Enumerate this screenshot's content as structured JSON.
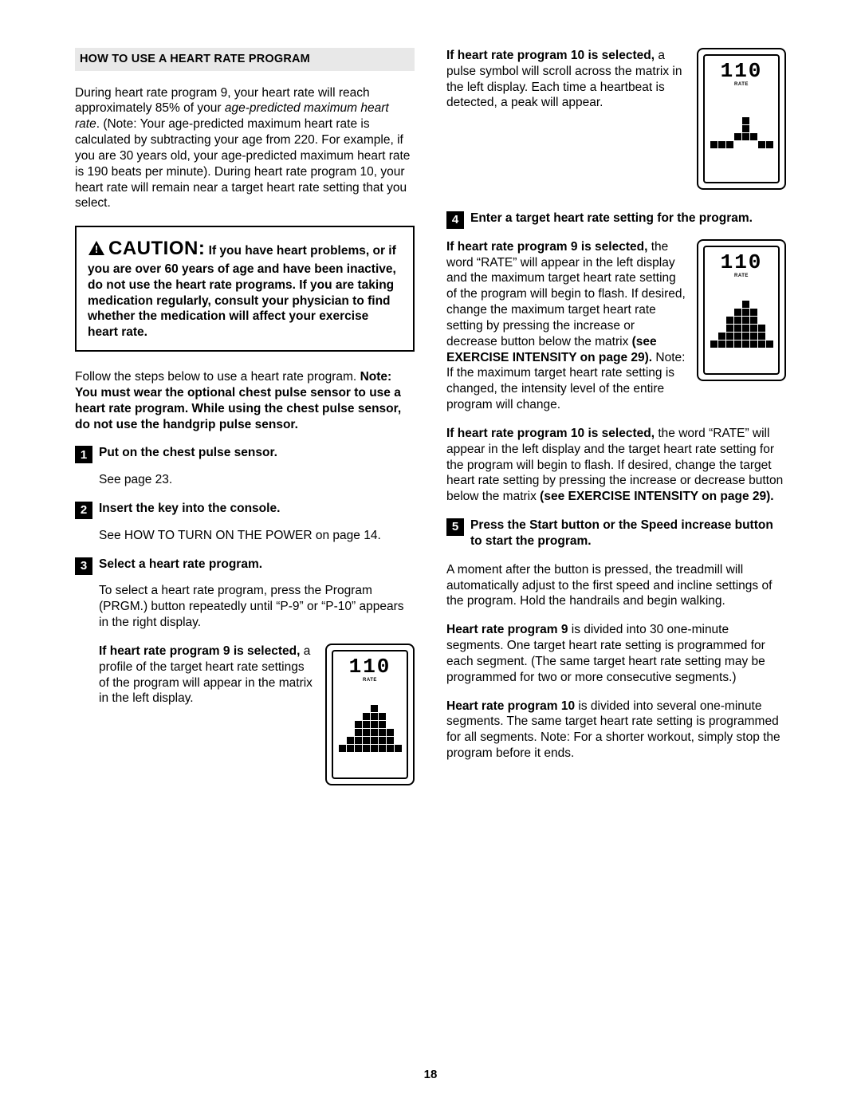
{
  "header": "HOW TO USE A HEART RATE PROGRAM",
  "intro_before_ital": "During heart rate program 9, your heart rate will reach approximately 85% of your ",
  "intro_ital": "age-predicted maximum heart rate",
  "intro_after_ital": ". (Note: Your age-predicted maximum heart rate is calculated by subtracting your age from 220. For example, if you are 30 years old, your age-pre­dicted maximum heart rate is 190 beats per minute). During heart rate program 10, your heart rate will re­main near a target heart rate setting that you select.",
  "caution_title": "CAUTION:",
  "caution_body": " If you have heart prob­lems, or if you are over 60 years of age and have been inactive, do not use the heart rate programs. If you are taking medication regu­larly, consult your physician to find whether the medication will affect your exercise heart rate.",
  "follow": "Follow the steps below to use a heart rate program.",
  "follow_bold": "Note: You must wear the optional chest pulse sen­sor to use a heart rate program. While using the chest pulse sensor, do not use the handgrip pulse sensor.",
  "steps": {
    "1": {
      "num": "1",
      "title": "Put on the chest pulse sensor.",
      "text": "See page 23."
    },
    "2": {
      "num": "2",
      "title": "Insert the key into the console.",
      "text": "See HOW TO TURN ON THE POWER on page 14."
    },
    "3": {
      "num": "3",
      "title": "Select a heart rate program.",
      "text": "To select a heart rate program, press the Program (PRGM.) button repeatedly until “P-9” or “P-10” appears in the right display.",
      "p9_bold": "If heart rate program 9 is selected,",
      "p9_rest": " a profile of the target heart rate settings of the program will appear in the matrix in the left display.",
      "p10_bold": "If heart rate program 10 is selected,",
      "p10_rest": " a pulse symbol will scroll across the matrix in the left display. Each time a heartbeat is detected, a peak will appear."
    },
    "4": {
      "num": "4",
      "title": "Enter a target heart rate setting for the program.",
      "p9_bold": "If heart rate program 9 is selected,",
      "p9_rest": " the word “RATE” will appear in the left display and the maximum target heart rate setting of the pro­gram will begin to flash. If desired, change the maxi­mum target heart rate setting by pressing the increase or decrease button below the matrix ",
      "p9_bold2": "(see EXERCISE INTENSITY on page 29).",
      "p9_rest2": " Note: If the maximum target heart rate setting is changed, the intensity level of the entire program will change.",
      "p10_bold": "If heart rate program 10 is selected,",
      "p10_rest": " the word “RATE” will appear in the left display and the tar­get heart rate setting for the program will begin to flash. If desired, change the target heart rate set­ting by pressing the increase or decrease button below the matrix ",
      "p10_bold2": "(see EXERCISE INTENSITY on page 29)."
    },
    "5": {
      "num": "5",
      "title": "Press the Start button or the Speed increase button to start the program.",
      "text1": "A moment after the button is pressed, the tread­mill will automatically adjust to the first speed and incline settings of the program. Hold the handrails and begin walking.",
      "hr9_bold": "Heart rate program 9",
      "hr9_rest": " is divided into 30 one-minute segments. One target heart rate setting is programmed for each segment. (The same target heart rate setting may be programmed for two or more consecutive segments.)",
      "hr10_bold": "Heart rate program 10",
      "hr10_rest": " is divided into several one-minute segments. The same target heart rate setting is programmed for all segments. Note: For a shorter workout, simply stop the program before it ends."
    }
  },
  "lcd": {
    "value": "110",
    "rate": "RATE"
  },
  "page_number": "18",
  "matrices": {
    "profile": [
      [
        0,
        0,
        0,
        0,
        0,
        0,
        0,
        0
      ],
      [
        0,
        0,
        0,
        0,
        0,
        0,
        0,
        0
      ],
      [
        0,
        0,
        0,
        0,
        1,
        0,
        0,
        0
      ],
      [
        0,
        0,
        0,
        1,
        1,
        1,
        0,
        0
      ],
      [
        0,
        0,
        1,
        1,
        1,
        1,
        0,
        0
      ],
      [
        0,
        0,
        1,
        1,
        1,
        1,
        1,
        0
      ],
      [
        0,
        1,
        1,
        1,
        1,
        1,
        1,
        0
      ],
      [
        1,
        1,
        1,
        1,
        1,
        1,
        1,
        1
      ]
    ],
    "pulse": [
      [
        0,
        0,
        0,
        0,
        0,
        0,
        0,
        0
      ],
      [
        0,
        0,
        0,
        0,
        0,
        0,
        0,
        0
      ],
      [
        0,
        0,
        0,
        0,
        0,
        0,
        0,
        0
      ],
      [
        0,
        0,
        0,
        0,
        1,
        0,
        0,
        0
      ],
      [
        0,
        0,
        0,
        0,
        1,
        0,
        0,
        0
      ],
      [
        0,
        0,
        0,
        1,
        1,
        1,
        0,
        0
      ],
      [
        1,
        1,
        1,
        0,
        0,
        0,
        1,
        1
      ],
      [
        0,
        0,
        0,
        0,
        0,
        0,
        0,
        0
      ]
    ],
    "profile2": [
      [
        0,
        0,
        0,
        0,
        0,
        0,
        0,
        0
      ],
      [
        0,
        0,
        0,
        0,
        0,
        0,
        0,
        0
      ],
      [
        0,
        0,
        0,
        0,
        1,
        0,
        0,
        0
      ],
      [
        0,
        0,
        0,
        1,
        1,
        1,
        0,
        0
      ],
      [
        0,
        0,
        1,
        1,
        1,
        1,
        0,
        0
      ],
      [
        0,
        0,
        1,
        1,
        1,
        1,
        1,
        0
      ],
      [
        0,
        1,
        1,
        1,
        1,
        1,
        1,
        0
      ],
      [
        1,
        1,
        1,
        1,
        1,
        1,
        1,
        1
      ]
    ]
  }
}
